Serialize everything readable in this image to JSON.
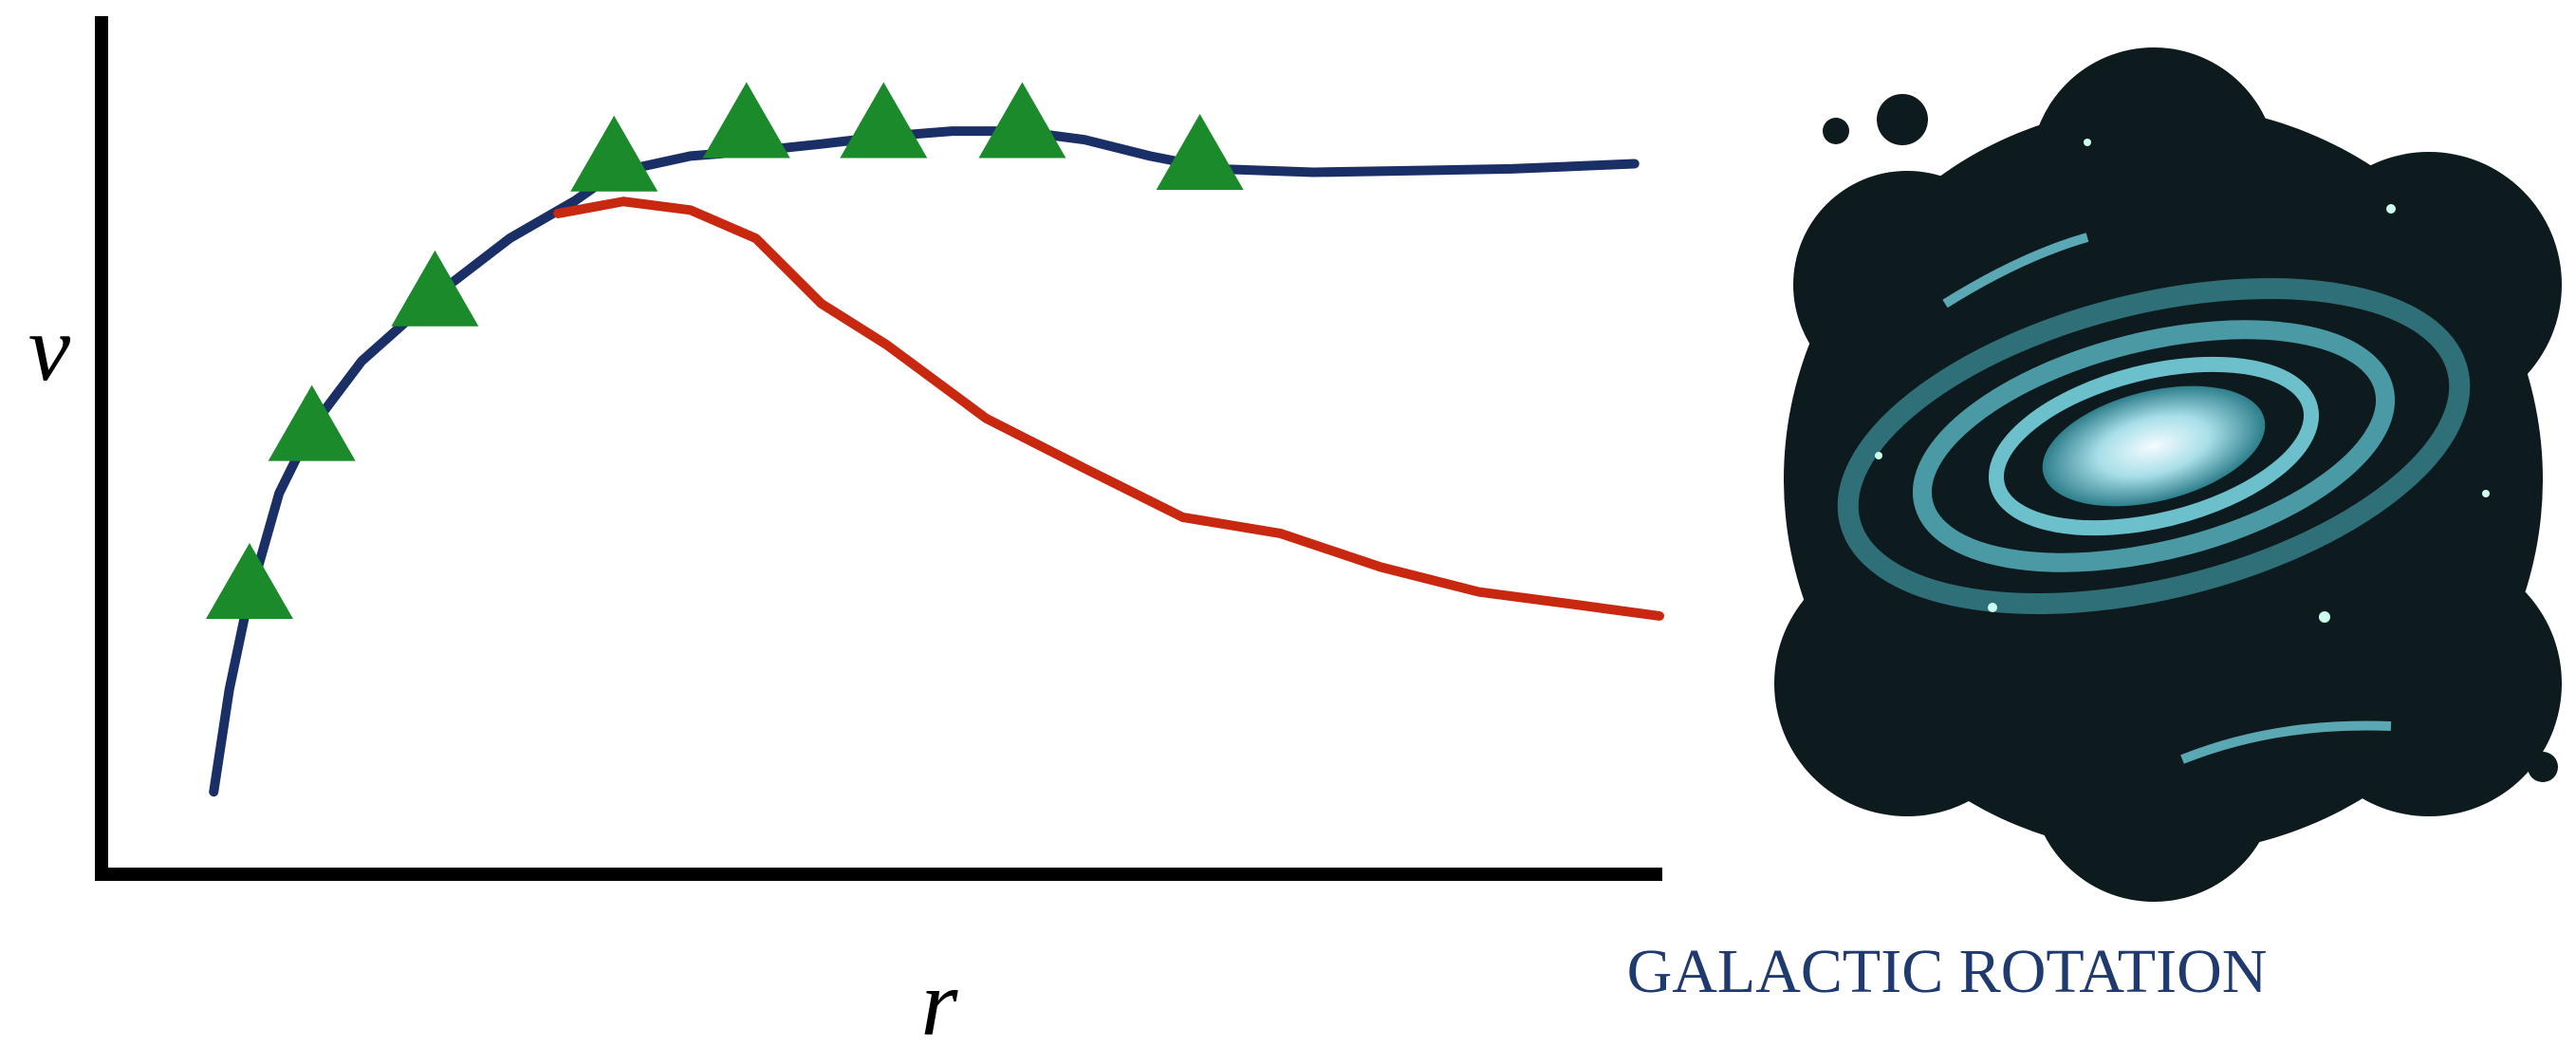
{
  "chart_data": {
    "type": "line",
    "x_label": "r",
    "y_label": "v",
    "caption": "GALACTIC ROTATION",
    "xlim": [
      0,
      100
    ],
    "ylim": [
      0,
      100
    ],
    "grid": false,
    "series": [
      {
        "type": "line",
        "color": "#1a2f66",
        "x": [
          7.2,
          8.2,
          9.3,
          11.4,
          13.5,
          16.7,
          21.4,
          26.2,
          30.4,
          33.0,
          37.8,
          42.0,
          46.2,
          50.4,
          54.6,
          58.9,
          63.1,
          67.3,
          71.5,
          77.8,
          84.2,
          90.5,
          98.4
        ],
        "values": [
          9.6,
          21.5,
          31.0,
          44.4,
          52.1,
          59.8,
          67.4,
          74.1,
          78.5,
          81.8,
          83.7,
          84.3,
          85.1,
          86.0,
          86.6,
          86.6,
          85.6,
          83.7,
          82.2,
          81.8,
          82.0,
          82.2,
          82.8
        ]
      },
      {
        "type": "line",
        "color": "#c8280f",
        "x": [
          29.3,
          33.5,
          37.8,
          42.0,
          46.2,
          50.4,
          56.8,
          63.1,
          69.4,
          75.7,
          82.1,
          88.4,
          94.7,
          100.0
        ],
        "values": [
          77.0,
          78.4,
          77.4,
          74.1,
          66.5,
          61.7,
          53.1,
          47.3,
          41.6,
          39.7,
          35.8,
          32.9,
          31.4,
          30.1
        ]
      },
      {
        "type": "scatter",
        "color": "#1a8a2a",
        "marker": "triangle",
        "x": [
          9.5,
          13.5,
          21.4,
          32.9,
          41.4,
          50.2,
          59.1,
          70.5
        ],
        "values": [
          33.3,
          51.7,
          67.4,
          83.1,
          87.0,
          87.0,
          87.0,
          83.3
        ]
      }
    ]
  }
}
